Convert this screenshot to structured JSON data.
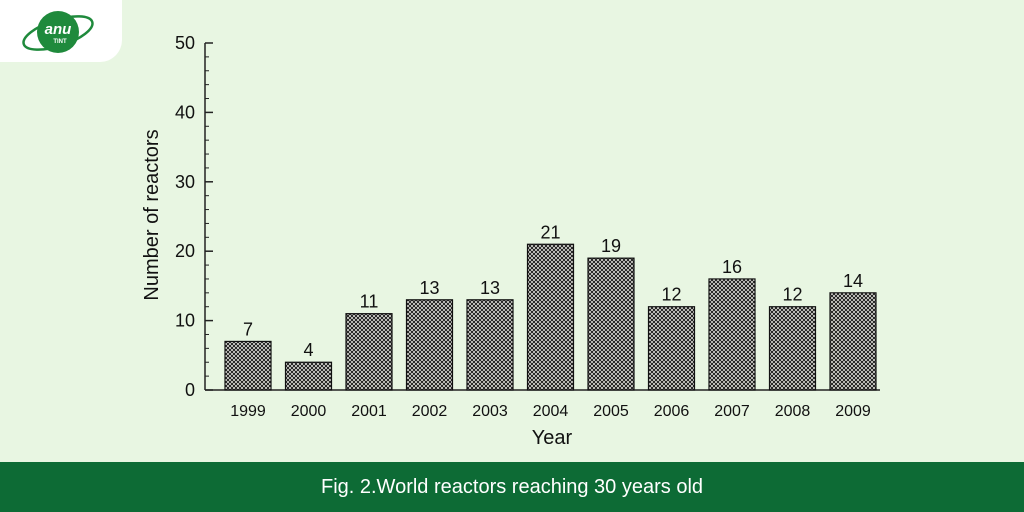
{
  "brand": {
    "logo_top": "anu",
    "logo_bottom": "TINT"
  },
  "caption": "Fig. 2.World reactors reaching 30 years old",
  "colors": {
    "background": "#e8f6e2",
    "caption_bar": "#0d6b35",
    "logo_green": "#1f8a3c"
  },
  "chart_data": {
    "type": "bar",
    "categories": [
      "1999",
      "2000",
      "2001",
      "2002",
      "2003",
      "2004",
      "2005",
      "2006",
      "2007",
      "2008",
      "2009"
    ],
    "values": [
      7,
      4,
      11,
      13,
      13,
      21,
      19,
      12,
      16,
      12,
      14
    ],
    "xlabel": "Year",
    "ylabel": "Number of reactors",
    "ylim": [
      0,
      50
    ],
    "yticks": [
      0,
      10,
      20,
      30,
      40,
      50
    ],
    "data_labels": true,
    "bar_fill": "crosshatch",
    "grid": false
  }
}
